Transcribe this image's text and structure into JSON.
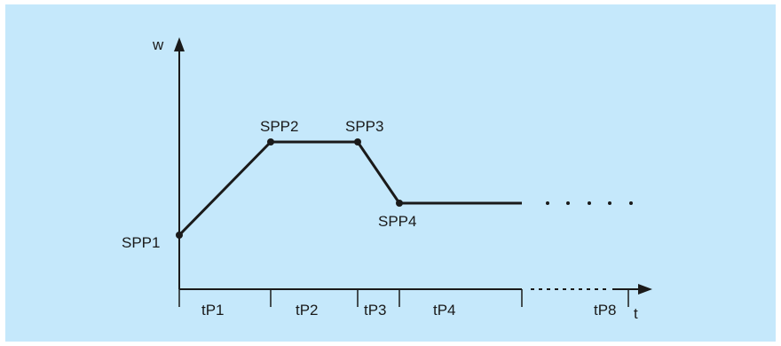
{
  "axes": {
    "y_label": "w",
    "x_label": "t"
  },
  "points": [
    {
      "label": "SPP1"
    },
    {
      "label": "SPP2"
    },
    {
      "label": "SPP3"
    },
    {
      "label": "SPP4"
    }
  ],
  "intervals": [
    {
      "label": "tP1"
    },
    {
      "label": "tP2"
    },
    {
      "label": "tP3"
    },
    {
      "label": "tP4"
    },
    {
      "label": "tP8"
    }
  ],
  "colors": {
    "background": "#c5e8fb",
    "line": "#1a1a1a"
  }
}
